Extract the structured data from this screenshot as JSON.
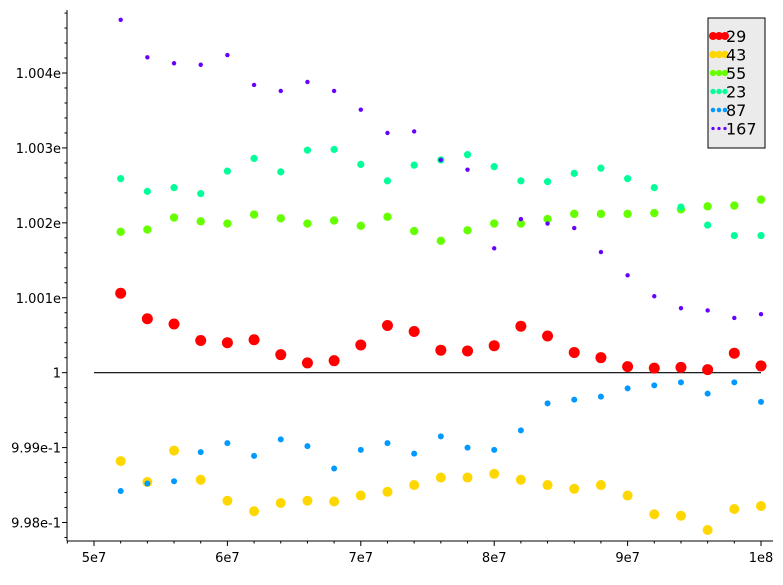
{
  "chart_data": {
    "type": "scatter",
    "title": "",
    "xlabel": "",
    "ylabel": "",
    "xlim": [
      48000000,
      101000000
    ],
    "ylim": [
      0.99775,
      1.00487
    ],
    "grid": false,
    "legend_position": "top-right",
    "x_ticks": [
      {
        "value": 50000000,
        "label": "5e7"
      },
      {
        "value": 60000000,
        "label": "6e7"
      },
      {
        "value": 70000000,
        "label": "7e7"
      },
      {
        "value": 80000000,
        "label": "8e7"
      },
      {
        "value": 90000000,
        "label": "9e7"
      },
      {
        "value": 100000000,
        "label": "1e8"
      }
    ],
    "y_ticks": [
      {
        "value": 0.998,
        "label": "9.98e-1"
      },
      {
        "value": 0.999,
        "label": "9.99e-1"
      },
      {
        "value": 1.0,
        "label": "1"
      },
      {
        "value": 1.001,
        "label": "1.001e"
      },
      {
        "value": 1.002,
        "label": "1.002e"
      },
      {
        "value": 1.003,
        "label": "1.003e"
      },
      {
        "value": 1.004,
        "label": "1.004e"
      }
    ],
    "reference_line": {
      "y": 1.0,
      "x_range": [
        50000000,
        100000000
      ],
      "color": "#000000"
    },
    "x": [
      52000000,
      54000000,
      56000000,
      58000000,
      60000000,
      62000000,
      64000000,
      66000000,
      68000000,
      70000000,
      72000000,
      74000000,
      76000000,
      78000000,
      80000000,
      82000000,
      84000000,
      86000000,
      88000000,
      90000000,
      92000000,
      94000000,
      96000000,
      98000000,
      100000000
    ],
    "series": [
      {
        "name": "29",
        "color": "#ff0000",
        "marker_size": 5.5,
        "values": [
          1.00106,
          1.00072,
          1.00065,
          1.00043,
          1.0004,
          1.00044,
          1.00024,
          1.00013,
          1.00016,
          1.00037,
          1.00063,
          1.00055,
          1.0003,
          1.00029,
          1.00036,
          1.00062,
          1.00049,
          1.00027,
          1.0002,
          1.00008,
          1.00006,
          1.00007,
          1.00004,
          1.00026,
          1.00009
        ]
      },
      {
        "name": "43",
        "color": "#ffd700",
        "marker_size": 5,
        "values": [
          0.99882,
          0.99854,
          0.99896,
          0.99857,
          0.99829,
          0.99815,
          0.99826,
          0.99829,
          0.99828,
          0.99836,
          0.99841,
          0.9985,
          0.9986,
          0.9986,
          0.99865,
          0.99857,
          0.9985,
          0.99845,
          0.9985,
          0.99836,
          0.99811,
          0.99809,
          0.9979,
          0.99818,
          0.99822
        ]
      },
      {
        "name": "55",
        "color": "#66ff00",
        "marker_size": 4.2,
        "values": [
          1.00188,
          1.00191,
          1.00207,
          1.00202,
          1.00199,
          1.00211,
          1.00206,
          1.00199,
          1.00203,
          1.00196,
          1.00208,
          1.00189,
          1.00176,
          1.0019,
          1.00199,
          1.00199,
          1.00205,
          1.00212,
          1.00212,
          1.00212,
          1.00213,
          1.00218,
          1.00222,
          1.00223,
          1.00231
        ]
      },
      {
        "name": "23",
        "color": "#00ff99",
        "marker_size": 3.6,
        "values": [
          1.00259,
          1.00242,
          1.00247,
          1.00239,
          1.00269,
          1.00286,
          1.00268,
          1.00297,
          1.00298,
          1.00278,
          1.00256,
          1.00277,
          1.00284,
          1.00291,
          1.00275,
          1.00256,
          1.00255,
          1.00266,
          1.00273,
          1.00259,
          1.00247,
          1.00221,
          1.00197,
          1.00183,
          1.00183
        ]
      },
      {
        "name": "87",
        "color": "#0099ff",
        "marker_size": 3,
        "values": [
          0.99842,
          0.99852,
          0.99855,
          0.99894,
          0.99906,
          0.99889,
          0.99911,
          0.99902,
          0.99872,
          0.99897,
          0.99906,
          0.99892,
          0.99915,
          0.999,
          0.99897,
          0.99923,
          0.99959,
          0.99964,
          0.99968,
          0.99979,
          0.99983,
          0.99987,
          0.99972,
          0.99987,
          0.99961
        ]
      },
      {
        "name": "167",
        "color": "#6600ff",
        "marker_size": 2.2,
        "values": [
          1.00471,
          1.00421,
          1.00413,
          1.00411,
          1.00424,
          1.00384,
          1.00376,
          1.00388,
          1.00376,
          1.00351,
          1.0032,
          1.00322,
          1.00284,
          1.00271,
          1.00166,
          1.00205,
          1.00199,
          1.00193,
          1.00161,
          1.0013,
          1.00102,
          1.00086,
          1.00083,
          1.00073,
          1.00078
        ]
      }
    ]
  }
}
